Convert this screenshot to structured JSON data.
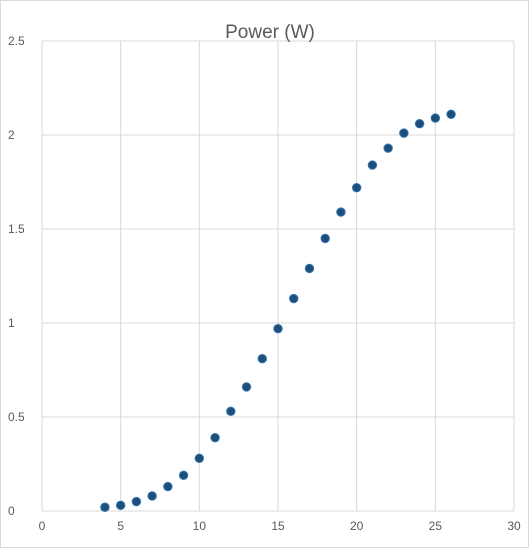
{
  "chart_data": {
    "type": "scatter",
    "title": "Power (W)",
    "xlabel": "",
    "ylabel": "",
    "xlim": [
      0,
      30
    ],
    "ylim": [
      0,
      2.5
    ],
    "x_ticks": [
      0,
      5,
      10,
      15,
      20,
      25,
      30
    ],
    "y_ticks": [
      0,
      0.5,
      1,
      1.5,
      2,
      2.5
    ],
    "x_tick_labels": [
      "0",
      "5",
      "10",
      "15",
      "20",
      "25",
      "30"
    ],
    "y_tick_labels": [
      "0",
      "0.5",
      "1",
      "1.5",
      "2",
      "2.5"
    ],
    "grid": true,
    "legend": "none",
    "marker_color": "#1f4e79",
    "series": [
      {
        "points": [
          {
            "x": 4,
            "y": 0.02
          },
          {
            "x": 5,
            "y": 0.03
          },
          {
            "x": 6,
            "y": 0.05
          },
          {
            "x": 7,
            "y": 0.08
          },
          {
            "x": 8,
            "y": 0.13
          },
          {
            "x": 9,
            "y": 0.19
          },
          {
            "x": 10,
            "y": 0.28
          },
          {
            "x": 11,
            "y": 0.39
          },
          {
            "x": 12,
            "y": 0.53
          },
          {
            "x": 13,
            "y": 0.66
          },
          {
            "x": 14,
            "y": 0.81
          },
          {
            "x": 15,
            "y": 0.97
          },
          {
            "x": 16,
            "y": 1.13
          },
          {
            "x": 17,
            "y": 1.29
          },
          {
            "x": 18,
            "y": 1.45
          },
          {
            "x": 19,
            "y": 1.59
          },
          {
            "x": 20,
            "y": 1.72
          },
          {
            "x": 21,
            "y": 1.84
          },
          {
            "x": 22,
            "y": 1.93
          },
          {
            "x": 23,
            "y": 2.01
          },
          {
            "x": 24,
            "y": 2.06
          },
          {
            "x": 25,
            "y": 2.09
          },
          {
            "x": 26,
            "y": 2.11
          }
        ]
      }
    ]
  }
}
